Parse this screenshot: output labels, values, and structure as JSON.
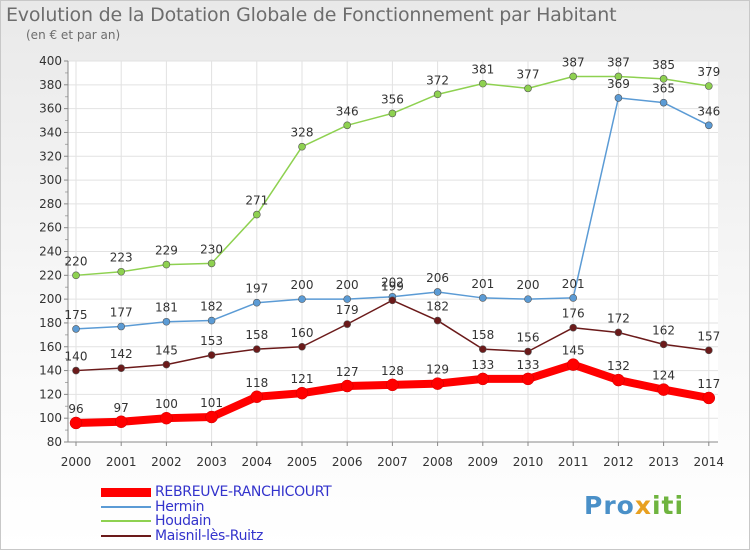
{
  "chart_data": {
    "type": "line",
    "title": "Evolution de la Dotation Globale de Fonctionnement par Habitant",
    "subtitle": "(en € et par an)",
    "xlabel": "",
    "ylabel": "",
    "x": [
      "2000",
      "2001",
      "2002",
      "2003",
      "2004",
      "2005",
      "2006",
      "2007",
      "2008",
      "2009",
      "2010",
      "2011",
      "2012",
      "2013",
      "2014"
    ],
    "ylim": [
      80,
      400
    ],
    "yticks": [
      80,
      100,
      120,
      140,
      160,
      180,
      200,
      220,
      240,
      260,
      280,
      300,
      320,
      340,
      360,
      380,
      400
    ],
    "series": [
      {
        "name": "REBREUVE-RANCHICOURT",
        "color": "#ff0000",
        "values": [
          96,
          97,
          100,
          101,
          118,
          121,
          127,
          128,
          129,
          133,
          133,
          145,
          132,
          124,
          117
        ]
      },
      {
        "name": "Hermin",
        "color": "#5b9bd5",
        "values": [
          175,
          177,
          181,
          182,
          197,
          200,
          200,
          202,
          206,
          201,
          200,
          201,
          369,
          365,
          346
        ]
      },
      {
        "name": "Houdain",
        "color": "#8ed150",
        "values": [
          220,
          223,
          229,
          230,
          271,
          328,
          346,
          356,
          372,
          381,
          377,
          387,
          387,
          385,
          379
        ]
      },
      {
        "name": "Maisnil-lès-Ruitz",
        "color": "#6b1a1a",
        "values": [
          140,
          142,
          145,
          153,
          158,
          160,
          179,
          199,
          182,
          158,
          156,
          176,
          172,
          162,
          157
        ]
      }
    ]
  },
  "logo": {
    "part1": "Pro",
    "part2": "x",
    "part3": "iti"
  }
}
